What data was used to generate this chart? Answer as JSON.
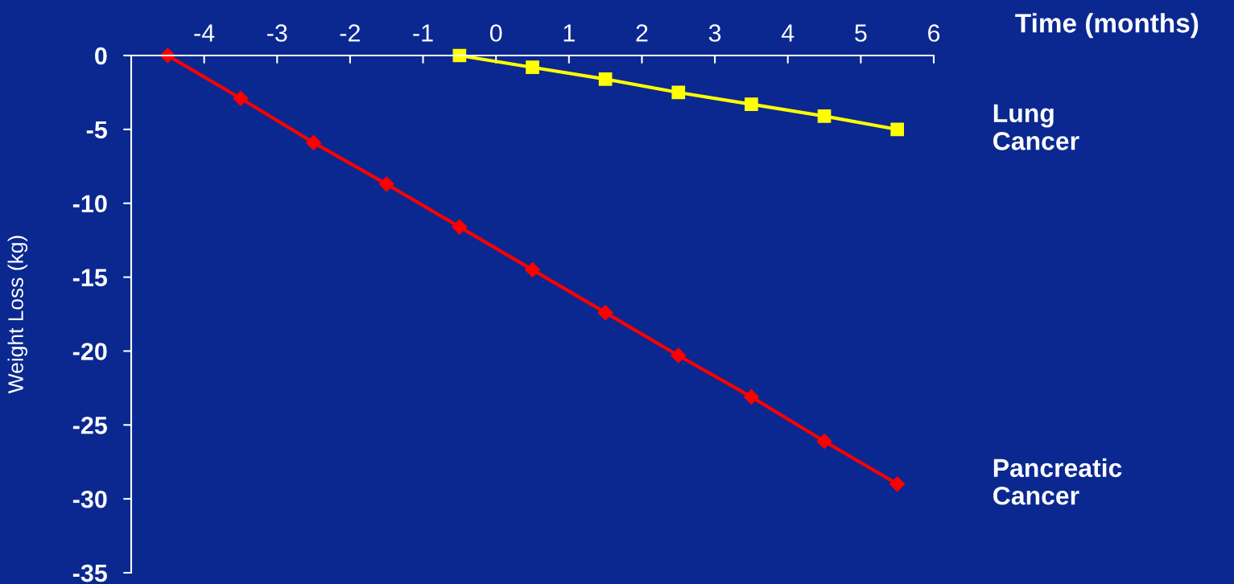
{
  "chart_data": {
    "type": "line",
    "xlabel": "Time (months)",
    "ylabel": "Weight Loss (kg)",
    "xlim": [
      -5,
      6
    ],
    "xticks": [
      -4,
      -3,
      -2,
      -1,
      0,
      1,
      2,
      3,
      4,
      5,
      6
    ],
    "ylim": [
      -35,
      0
    ],
    "yticks": [
      0,
      -5,
      -10,
      -15,
      -20,
      -25,
      -30,
      -35
    ],
    "grid": false,
    "legend": false,
    "line_style": "solid",
    "series": [
      {
        "name": "Lung\nCancer",
        "color": "#ffff00",
        "marker": "square",
        "x": [
          -0.5,
          0.5,
          1.5,
          2.5,
          3.5,
          4.5,
          5.5
        ],
        "values": [
          0,
          -0.8,
          -1.6,
          -2.5,
          -3.3,
          -4.1,
          -5
        ]
      },
      {
        "name": "Pancreatic\nCancer",
        "color": "#ff0000",
        "marker": "diamond",
        "x": [
          -4.5,
          -3.5,
          -2.5,
          -1.5,
          -0.5,
          0.5,
          1.5,
          2.5,
          3.5,
          4.5,
          5.5
        ],
        "values": [
          0,
          -2.9,
          -5.9,
          -8.7,
          -11.6,
          -14.5,
          -17.4,
          -20.3,
          -23.1,
          -26.1,
          -29
        ]
      }
    ]
  }
}
